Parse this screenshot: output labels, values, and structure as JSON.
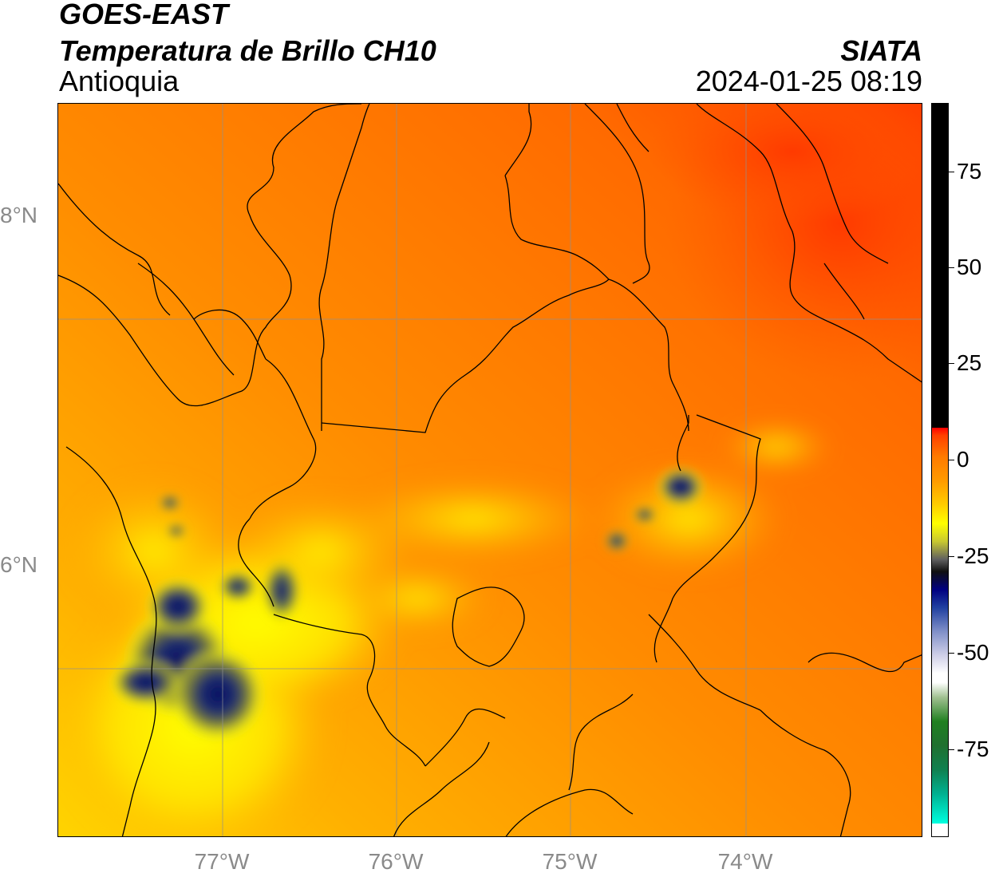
{
  "header": {
    "line1": "GOES-EAST",
    "line2": "Temperatura de Brillo CH10",
    "region": "Antioquia",
    "org": "SIATA",
    "timestamp": "2024-01-25 08:19"
  },
  "axes": {
    "lat_labels": [
      "8°N",
      "6°N"
    ],
    "lon_labels": [
      "77°W",
      "76°W",
      "75°W",
      "74°W"
    ]
  },
  "colorbar": {
    "ticks": [
      "75",
      "50",
      "25",
      "0",
      "-25",
      "-50",
      "-75"
    ],
    "colors": {
      "black": "#000000",
      "red": "#ff2000",
      "orange": "#ff8000",
      "yellow": "#ffff00",
      "navy": "#000060",
      "white": "#ffffff",
      "green": "#2a8a2a",
      "cyan": "#00e5e5"
    }
  }
}
